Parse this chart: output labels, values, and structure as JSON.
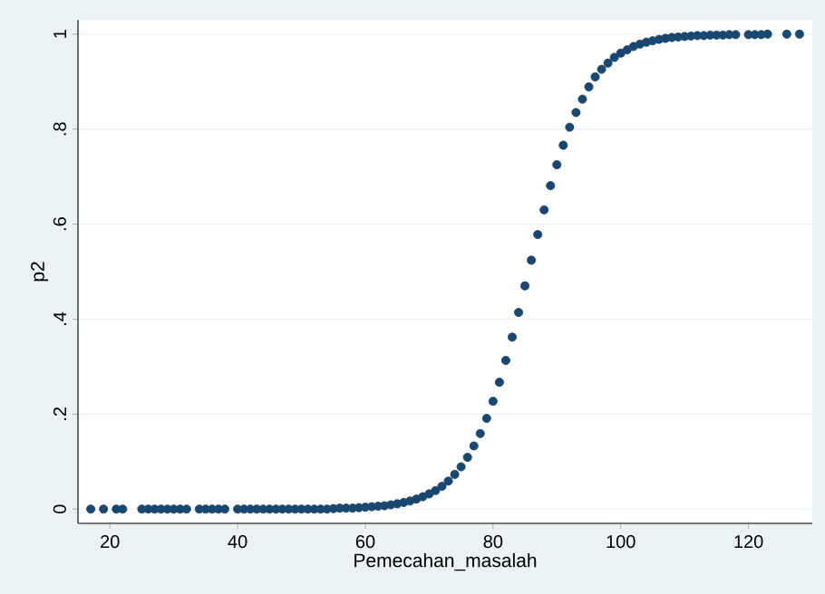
{
  "chart_data": {
    "type": "scatter",
    "xlabel": "Pemecahan_masalah",
    "ylabel": "p2",
    "xlim": [
      15,
      130
    ],
    "ylim": [
      -0.03,
      1.03
    ],
    "xticks": [
      20,
      40,
      60,
      80,
      100,
      120
    ],
    "yticks": [
      0,
      {
        "value": 0.2,
        "label": ".2"
      },
      {
        "value": 0.4,
        "label": ".4"
      },
      {
        "value": 0.6,
        "label": ".6"
      },
      {
        "value": 0.8,
        "label": ".8"
      },
      1
    ],
    "grid": "y",
    "marker": "circle",
    "series": [
      {
        "color": "#1a476f",
        "x": [
          17,
          19,
          21,
          22,
          25,
          26,
          27,
          28,
          29,
          30,
          31,
          32,
          34,
          35,
          36,
          37,
          38,
          40,
          41,
          42,
          43,
          44,
          45,
          46,
          47,
          48,
          49,
          50,
          51,
          52,
          53,
          54,
          55,
          56,
          57,
          58,
          59,
          60,
          61,
          62,
          63,
          64,
          65,
          66,
          67,
          68,
          69,
          70,
          71,
          72,
          73,
          74,
          75,
          76,
          77,
          78,
          79,
          80,
          81,
          82,
          83,
          84,
          85,
          86,
          87,
          88,
          89,
          90,
          91,
          92,
          93,
          94,
          95,
          96,
          97,
          98,
          99,
          100,
          101,
          102,
          103,
          104,
          105,
          106,
          107,
          108,
          109,
          110,
          111,
          112,
          113,
          114,
          115,
          116,
          117,
          118,
          120,
          121,
          122,
          123,
          126,
          128
        ],
        "values": [
          0,
          0,
          0,
          0,
          0,
          0,
          0,
          0,
          0,
          0,
          0,
          0,
          0,
          0,
          0,
          0,
          0,
          0,
          0,
          0,
          0,
          0,
          0,
          0,
          0,
          0,
          0,
          0,
          0,
          0,
          0,
          0,
          0.001,
          0.002,
          0.002,
          0.002,
          0.003,
          0.004,
          0.005,
          0.006,
          0.007,
          0.009,
          0.011,
          0.014,
          0.017,
          0.021,
          0.026,
          0.032,
          0.039,
          0.048,
          0.059,
          0.073,
          0.089,
          0.109,
          0.133,
          0.159,
          0.191,
          0.227,
          0.267,
          0.313,
          0.362,
          0.414,
          0.47,
          0.524,
          0.578,
          0.63,
          0.681,
          0.725,
          0.766,
          0.804,
          0.835,
          0.863,
          0.889,
          0.91,
          0.926,
          0.939,
          0.951,
          0.96,
          0.967,
          0.974,
          0.979,
          0.983,
          0.986,
          0.989,
          0.991,
          0.993,
          0.994,
          0.995,
          0.996,
          0.997,
          0.997,
          0.998,
          0.998,
          0.998,
          0.999,
          0.999,
          0.999,
          0.999,
          0.999,
          1,
          1,
          1
        ]
      }
    ]
  }
}
